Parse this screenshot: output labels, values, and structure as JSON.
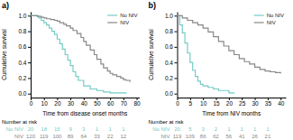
{
  "chart_data": [
    {
      "type": "step",
      "title": "a)",
      "xlabel": "Time from disease onset months",
      "ylabel": "Cumulative survival",
      "xlim": [
        0,
        82
      ],
      "ylim": [
        -0.05,
        1.05
      ],
      "xticks": [
        0,
        10,
        20,
        30,
        40,
        50,
        60,
        70,
        80
      ],
      "yticks": [
        {
          "value": 0.0,
          "label": "0.0"
        },
        0.2,
        0.4,
        0.6,
        0.8,
        {
          "value": 1.0,
          "label": "1.0"
        }
      ],
      "grid": false,
      "legend": "upper right",
      "series": [
        {
          "name": "No NIV",
          "color": "#74ccc6",
          "x": [
            0,
            3,
            6,
            8,
            10,
            12,
            14,
            16,
            18,
            20,
            22,
            24,
            26,
            28,
            30,
            32,
            34,
            36,
            40,
            45,
            50,
            55,
            60,
            65,
            70,
            72
          ],
          "values": [
            1.0,
            1.0,
            0.97,
            0.94,
            0.91,
            0.88,
            0.84,
            0.8,
            0.76,
            0.7,
            0.64,
            0.57,
            0.5,
            0.43,
            0.36,
            0.28,
            0.22,
            0.17,
            0.1,
            0.06,
            0.04,
            0.02,
            0.01,
            0.01,
            0.01,
            0.0
          ]
        },
        {
          "name": "NIV",
          "color": "#888888",
          "x": [
            0,
            5,
            8,
            10,
            12,
            15,
            18,
            20,
            22,
            25,
            27,
            30,
            32,
            35,
            38,
            40,
            42,
            45,
            48,
            50,
            53,
            55,
            58,
            60,
            62,
            65,
            68,
            70,
            72,
            75
          ],
          "values": [
            1.0,
            0.99,
            0.98,
            0.97,
            0.96,
            0.95,
            0.94,
            0.93,
            0.91,
            0.89,
            0.87,
            0.84,
            0.81,
            0.77,
            0.72,
            0.67,
            0.62,
            0.56,
            0.5,
            0.44,
            0.38,
            0.33,
            0.29,
            0.26,
            0.24,
            0.22,
            0.2,
            0.18,
            0.17,
            0.15
          ]
        }
      ],
      "risk_table": {
        "title": "Number at risk",
        "x": [
          0,
          10,
          20,
          30,
          40,
          50,
          60,
          70
        ],
        "rows": [
          {
            "name": "No NIV",
            "color": "#74ccc6",
            "values": [
              20,
              18,
              15,
              9,
              3,
              1,
              1,
              1
            ]
          },
          {
            "name": "NIV",
            "color": "#888888",
            "values": [
              120,
              119,
              100,
              89,
              64,
              33,
              22,
              12
            ]
          }
        ]
      }
    },
    {
      "type": "step",
      "title": "b)",
      "xlabel": "Time from NIV months",
      "ylabel": "Cumulative survival",
      "xlim": [
        0,
        42
      ],
      "ylim": [
        -0.05,
        1.05
      ],
      "xticks": [
        0,
        5,
        10,
        15,
        20,
        25,
        30,
        35,
        40
      ],
      "yticks": [
        {
          "value": 0.0,
          "label": "0.0"
        },
        0.2,
        0.4,
        0.6,
        0.8,
        {
          "value": 1.0,
          "label": "1.0"
        }
      ],
      "grid": false,
      "legend": "upper right",
      "series": [
        {
          "name": "No NIV",
          "color": "#74ccc6",
          "x": [
            0,
            1,
            2,
            3,
            4,
            5,
            6,
            7,
            8,
            9,
            10,
            12,
            14,
            16,
            20,
            22
          ],
          "values": [
            1.0,
            0.88,
            0.78,
            0.65,
            0.52,
            0.4,
            0.3,
            0.22,
            0.16,
            0.12,
            0.1,
            0.08,
            0.06,
            0.04,
            0.01,
            0.0
          ]
        },
        {
          "name": "NIV",
          "color": "#888888",
          "x": [
            0,
            2,
            4,
            6,
            8,
            10,
            12,
            14,
            16,
            18,
            20,
            22,
            24,
            26,
            28,
            30,
            32,
            34,
            36,
            38,
            40
          ],
          "values": [
            1.0,
            0.97,
            0.94,
            0.91,
            0.88,
            0.84,
            0.79,
            0.73,
            0.67,
            0.61,
            0.55,
            0.5,
            0.45,
            0.41,
            0.38,
            0.34,
            0.31,
            0.29,
            0.28,
            0.27,
            0.26
          ]
        }
      ],
      "risk_table": {
        "title": "Number at risk",
        "x": [
          0,
          5,
          10,
          15,
          20,
          25,
          30,
          35
        ],
        "rows": [
          {
            "name": "No NIV",
            "color": "#74ccc6",
            "values": [
              20,
              5,
              3,
              2,
              1,
              1,
              1,
              1
            ]
          },
          {
            "name": "NIV",
            "color": "#888888",
            "values": [
              119,
              109,
              86,
              62,
              56,
              41,
              26,
              21
            ]
          }
        ]
      }
    }
  ]
}
